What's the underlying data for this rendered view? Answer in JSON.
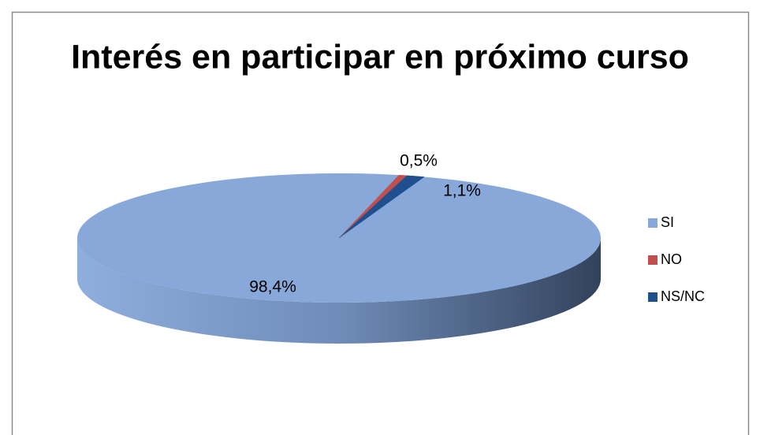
{
  "chart_data": {
    "type": "pie",
    "title": "Interés en participar en próximo curso",
    "categories": [
      "SI",
      "NO",
      "NS/NC"
    ],
    "values": [
      98.4,
      0.5,
      1.1
    ],
    "value_labels": [
      "98,4%",
      "0,5%",
      "1,1%"
    ],
    "colors": [
      "#87a8d8",
      "#c0504d",
      "#1f4f8e"
    ],
    "legend": "right"
  }
}
